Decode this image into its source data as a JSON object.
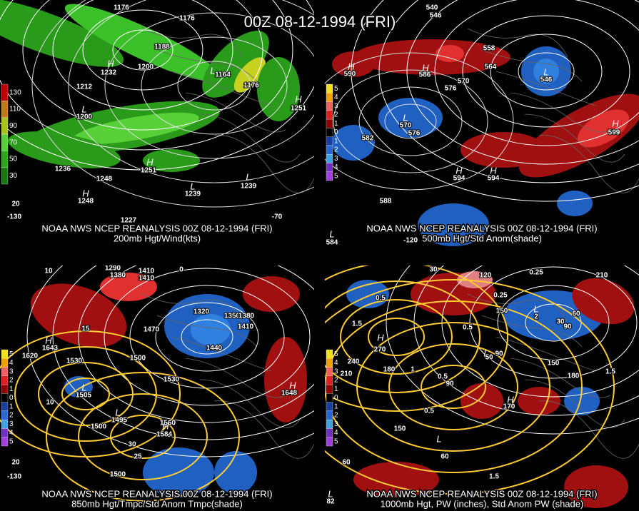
{
  "title": "00Z 08-12-1994 (FRI)",
  "panels": [
    {
      "source": "NOAA NWS NCEP REANALYSIS 00Z 08-12-1994 (FRI)",
      "caption": "200mb Hgt/Wind(kts)",
      "legend": [
        "130",
        "110",
        "90",
        "70",
        "50",
        "30"
      ],
      "labels": [
        "1176",
        "1176",
        "1188",
        "1200",
        "1212",
        "1164",
        "1176",
        "1236",
        "1248",
        "H",
        "1232",
        "L",
        "1200",
        "H",
        "1251",
        "L",
        "1239",
        "L",
        "1239",
        "H",
        "1251",
        "L",
        "H",
        "1248",
        "1227",
        "20",
        "-130",
        "-70"
      ]
    },
    {
      "source": "NOAA NWS NCEP REANALYSIS 00Z 08-12-1994 (FRI)",
      "caption": "500mb Hgt/Std Anom(shade)",
      "legend": [
        "5",
        "4",
        "3",
        "2",
        "1",
        "0",
        "1",
        "2",
        "3",
        "4",
        "5"
      ],
      "labels": [
        "540",
        "546",
        "558",
        "564",
        "570",
        "576",
        "582",
        "576",
        "588",
        "H",
        "590",
        "H",
        "586",
        "L",
        "546",
        "L",
        "570",
        "H",
        "599",
        "H",
        "594",
        "H",
        "594",
        "L",
        "584",
        "-120"
      ]
    },
    {
      "source": "NOAA NWS NCEP REANALYSIS 00Z 08-12-1994 (FRI)",
      "caption": "850mb Hgt/Tmpc/Std Anom Tmpc(shade)",
      "legend": [
        "5",
        "4",
        "3",
        "2",
        "1",
        "0",
        "1",
        "2",
        "3",
        "4",
        "5"
      ],
      "labels": [
        "1290",
        "1380",
        "1410",
        "1410",
        "1470",
        "1500",
        "1530",
        "1620",
        "1530",
        "1560",
        "1500",
        "1500",
        "1440",
        "1410",
        "1320",
        "1350",
        "1380",
        "H",
        "1643",
        "L",
        "1505",
        "L",
        "1495",
        "H",
        "1648",
        "H",
        "1584",
        "10",
        "15",
        "25",
        "30",
        "10",
        "0",
        "20",
        "-130"
      ]
    },
    {
      "source": "NOAA NWS NCEP REANALYSIS 00Z 08-12-1994 (FRI)",
      "caption": "1000mb Hgt, PW (inches), Std Anom PW (shade)",
      "legend": [
        "5",
        "4",
        "3",
        "2",
        "1",
        "0",
        "1",
        "2",
        "3",
        "4",
        "5"
      ],
      "labels": [
        "30",
        "120",
        "210",
        "0.25",
        "0.25",
        "0.5",
        "1.5",
        "H",
        "270",
        "240",
        "210",
        "180",
        "150",
        "90",
        "30",
        "60",
        "L",
        "2",
        "0.5",
        "150",
        "180",
        "1.5",
        "1",
        "0.5",
        "L",
        "50",
        "90",
        "90",
        "0.5",
        "H",
        "170",
        "150",
        "L",
        "60",
        "1.5",
        "L",
        "82",
        "60"
      ]
    }
  ]
}
